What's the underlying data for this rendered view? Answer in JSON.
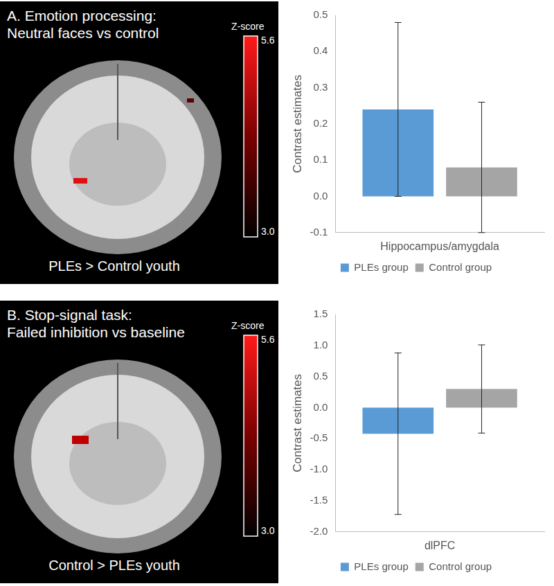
{
  "chart_data": [
    {
      "type": "bar",
      "categories": [
        "Hippocampus/amygdala"
      ],
      "y_label": "Contrast estimates",
      "series": [
        {
          "name": "PLEs group",
          "color": "#5b9bd5",
          "values": [
            0.24
          ],
          "errors": [
            0.24
          ]
        },
        {
          "name": "Control group",
          "color": "#a5a5a5",
          "values": [
            0.08
          ],
          "errors": [
            0.18
          ]
        }
      ],
      "ylim": [
        -0.1,
        0.5
      ],
      "yticks": [
        -0.1,
        {
          "value": 0,
          "label": "0.0"
        },
        0.1,
        0.2,
        0.3,
        0.4,
        0.5
      ],
      "grid": false,
      "legend": "bottom"
    },
    {
      "type": "bar",
      "categories": [
        "dlPFC"
      ],
      "y_label": "Contrast estimates",
      "series": [
        {
          "name": "PLEs group",
          "color": "#5b9bd5",
          "values": [
            -0.42
          ],
          "errors": [
            1.3
          ]
        },
        {
          "name": "Control group",
          "color": "#a5a5a5",
          "values": [
            0.3
          ],
          "errors": [
            0.71
          ]
        }
      ],
      "ylim": [
        -2.0,
        1.5
      ],
      "yticks": [
        {
          "value": -2,
          "label": "-2.0"
        },
        -1.5,
        {
          "value": -1,
          "label": "-1.0"
        },
        -0.5,
        {
          "value": 0,
          "label": "0.0"
        },
        0.5,
        {
          "value": 1,
          "label": "1.0"
        },
        1.5
      ],
      "grid": false,
      "legend": "bottom"
    }
  ],
  "image_panels": [
    {
      "title": [
        "A. Emotion processing:",
        "Neutral faces vs control"
      ],
      "caption": "PLEs > Control youth",
      "colorbar": {
        "label": "Z-score",
        "ticks": [
          {
            "value": 5.6,
            "label": "5.6"
          },
          {
            "value": 3,
            "label": "3.0"
          }
        ]
      }
    },
    {
      "title": [
        "B. Stop-signal task:",
        "Failed inhibition vs baseline"
      ],
      "caption": "Control > PLEs youth",
      "colorbar": {
        "label": "Z-score",
        "ticks": [
          {
            "value": 5.6,
            "label": "5.6"
          },
          {
            "value": 3,
            "label": "3.0"
          }
        ]
      }
    }
  ]
}
